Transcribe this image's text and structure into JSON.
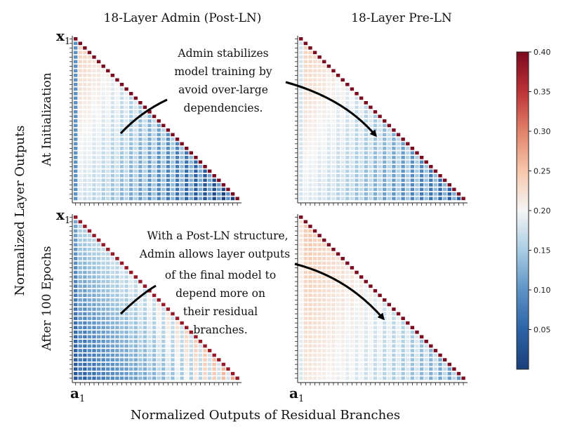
{
  "chart_data": {
    "type": "heatmap",
    "columns": [
      "18-Layer Admin (Post-LN)",
      "18-Layer Pre-LN"
    ],
    "rows": [
      "At Initialization",
      "After 100 Epochs"
    ],
    "xlabel": "Normalized Outputs of Residual Branches",
    "ylabel": "Normalized Layer Outputs",
    "corner_labels": {
      "y_top": "x",
      "x_left": "a",
      "subscript": "1"
    },
    "annotations": [
      {
        "lines": [
          "Admin stabilizes",
          "model training by",
          "avoid over-large",
          "dependencies."
        ]
      },
      {
        "lines": [
          "With a Post-LN structure,",
          "Admin allows layer outputs",
          "of the final model to",
          "depend more on",
          "their residual",
          "branches."
        ]
      }
    ],
    "colorbar": {
      "min": 0.0,
      "max": 0.4,
      "ticks": [
        "0.05",
        "0.10",
        "0.15",
        "0.20",
        "0.25",
        "0.30",
        "0.35",
        "0.40"
      ],
      "tick_values": [
        0.05,
        0.1,
        0.15,
        0.2,
        0.25,
        0.3,
        0.35,
        0.4
      ],
      "colormap": "RdBu_r",
      "low_color": "#1a3f7a",
      "mid_color": "#f5f5f5",
      "high_color": "#7a0a1f"
    },
    "panels": [
      {
        "row": 0,
        "col": 0,
        "diag": 0.4,
        "row_start": 0.25,
        "row_end": 0.18,
        "col_slope": -0.0055,
        "col_slope_rows": 0.0,
        "col1": 0.1,
        "col1_rows": 0.1
      },
      {
        "row": 0,
        "col": 1,
        "diag": 0.4,
        "row_start": 0.25,
        "row_end": 0.19,
        "col_slope": -0.0045,
        "col_slope_rows": 0.0,
        "col1": 0.18,
        "col1_rows": 0.18
      },
      {
        "row": 1,
        "col": 0,
        "diag": 0.38,
        "row_start": 0.15,
        "row_end": 0.03,
        "col_slope": 0.007,
        "col_slope_rows": 0.0,
        "col1": 0.12,
        "col1_rows": 0.03
      },
      {
        "row": 1,
        "col": 1,
        "diag": 0.4,
        "row_start": 0.26,
        "row_end": 0.22,
        "col_slope": -0.0035,
        "col_slope_rows": 0.0,
        "col1": 0.22,
        "col1_rows": 0.18
      }
    ]
  }
}
